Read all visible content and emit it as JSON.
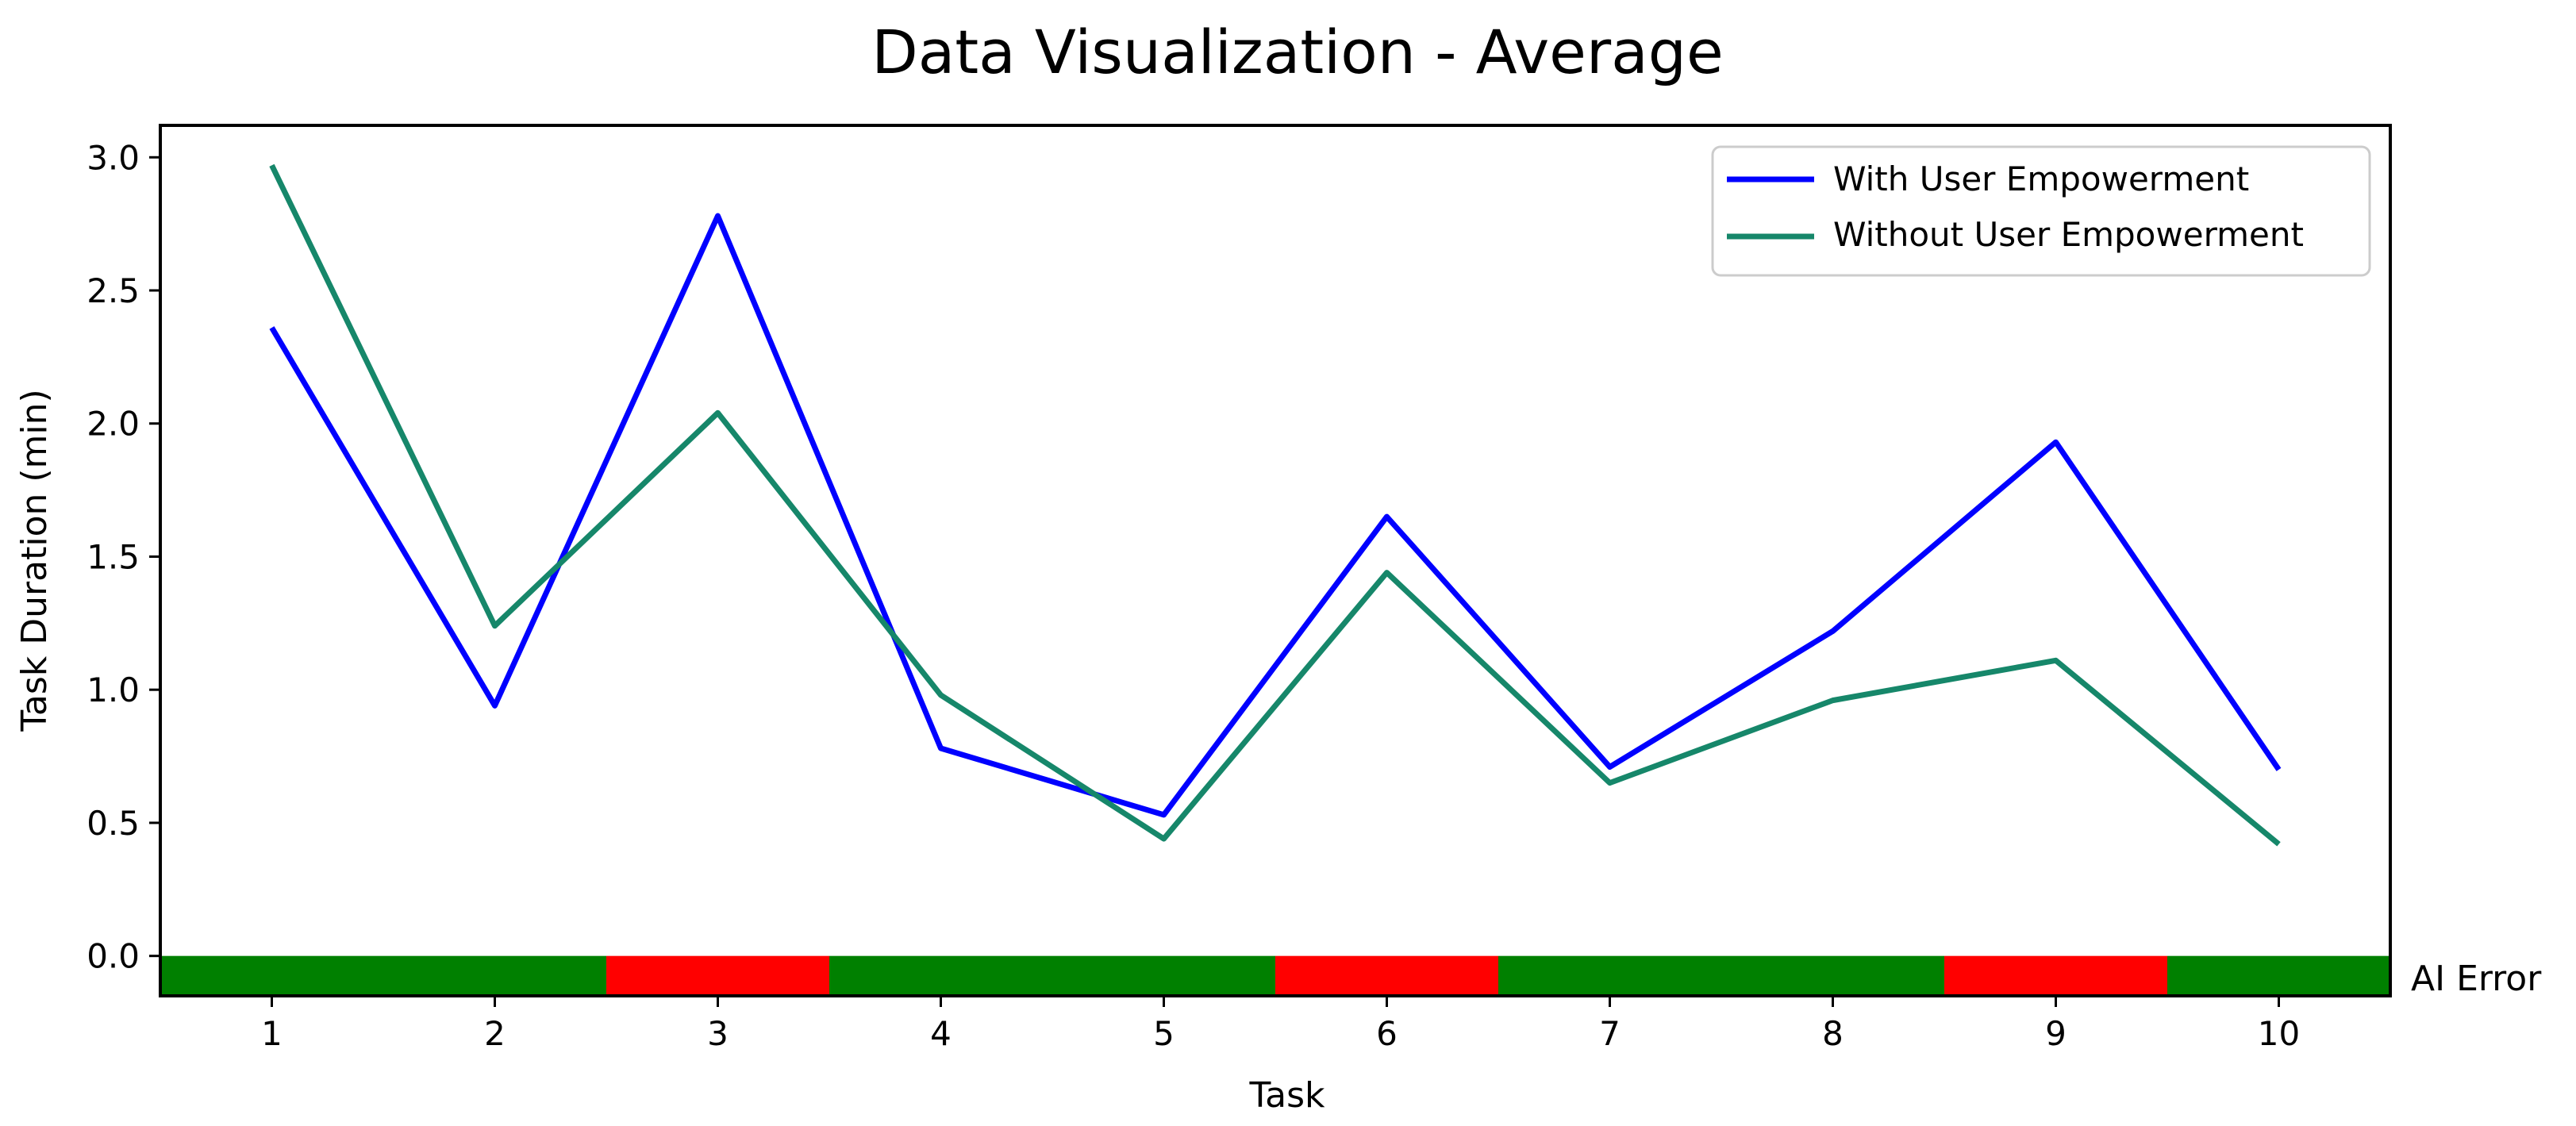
{
  "chart_data": {
    "type": "line",
    "title": "Data Visualization - Average",
    "xlabel": "Task",
    "ylabel": "Task Duration (min)",
    "x": [
      1,
      2,
      3,
      4,
      5,
      6,
      7,
      8,
      9,
      10
    ],
    "xlim": [
      0.5,
      10.5
    ],
    "ylim": [
      -0.15,
      3.12
    ],
    "yticks": [
      0.0,
      0.5,
      1.0,
      1.5,
      2.0,
      2.5,
      3.0
    ],
    "ytick_labels": [
      "0.0",
      "0.5",
      "1.0",
      "1.5",
      "2.0",
      "2.5",
      "3.0"
    ],
    "xtick_labels": [
      "1",
      "2",
      "3",
      "4",
      "5",
      "6",
      "7",
      "8",
      "9",
      "10"
    ],
    "series": [
      {
        "name": "With User Empowerment",
        "color": "#0000ff",
        "values": [
          2.36,
          0.94,
          2.78,
          0.78,
          0.53,
          1.65,
          0.71,
          1.22,
          1.93,
          0.7
        ]
      },
      {
        "name": "Without User Empowerment",
        "color": "#16876a",
        "values": [
          2.97,
          1.24,
          2.04,
          0.98,
          0.44,
          1.44,
          0.65,
          0.96,
          1.11,
          0.42
        ]
      }
    ],
    "ai_error": {
      "label": "AI Error",
      "values": [
        false,
        false,
        true,
        false,
        false,
        true,
        false,
        false,
        true,
        false
      ],
      "color_error": "#ff0000",
      "color_ok": "#008000"
    },
    "legend_position": "top-right",
    "grid": false
  }
}
